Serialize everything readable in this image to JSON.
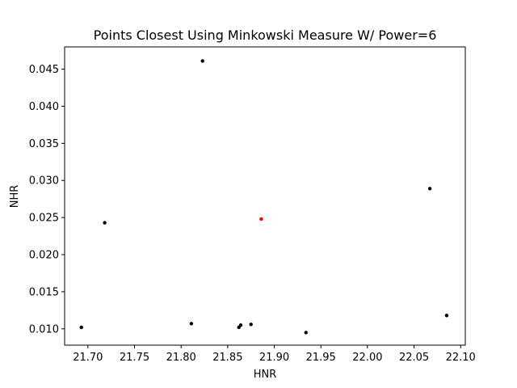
{
  "chart_data": {
    "type": "scatter",
    "title": "Points Closest Using Minkowski Measure W/ Power=6",
    "xlabel": "HNR",
    "ylabel": "NHR",
    "xlim": [
      21.675,
      22.105
    ],
    "ylim": [
      0.0078,
      0.048
    ],
    "xticks": [
      21.7,
      21.75,
      21.8,
      21.85,
      21.9,
      21.95,
      22.0,
      22.05,
      22.1
    ],
    "xtick_labels": [
      "21.70",
      "21.75",
      "21.80",
      "21.85",
      "21.90",
      "21.95",
      "22.00",
      "22.05",
      "22.10"
    ],
    "yticks": [
      0.01,
      0.015,
      0.02,
      0.025,
      0.03,
      0.035,
      0.04,
      0.045
    ],
    "ytick_labels": [
      "0.010",
      "0.015",
      "0.020",
      "0.025",
      "0.030",
      "0.035",
      "0.040",
      "0.045"
    ],
    "grid": false,
    "series": [
      {
        "color": "#000000",
        "points": [
          {
            "x": 21.693,
            "y": 0.0102
          },
          {
            "x": 21.718,
            "y": 0.0243
          },
          {
            "x": 21.811,
            "y": 0.0107
          },
          {
            "x": 21.823,
            "y": 0.0461
          },
          {
            "x": 21.862,
            "y": 0.0102
          },
          {
            "x": 21.864,
            "y": 0.0105
          },
          {
            "x": 21.875,
            "y": 0.0106
          },
          {
            "x": 21.934,
            "y": 0.0095
          },
          {
            "x": 22.067,
            "y": 0.0289
          },
          {
            "x": 22.085,
            "y": 0.0118
          }
        ]
      },
      {
        "color": "#ff0000",
        "points": [
          {
            "x": 21.886,
            "y": 0.0248
          }
        ]
      }
    ]
  }
}
